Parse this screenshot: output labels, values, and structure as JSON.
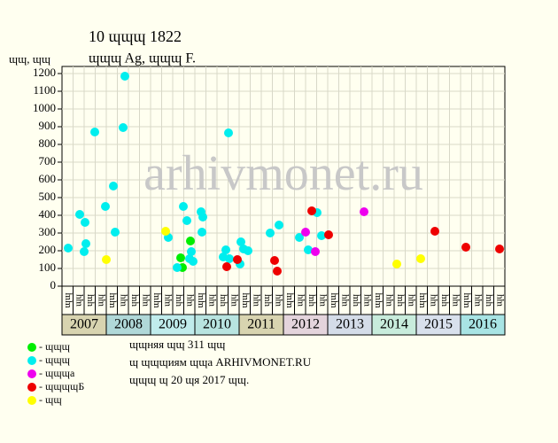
{
  "chart_data": {
    "type": "scatter",
    "title": "10 ɰɰɰ 1822",
    "subtitle": "ɰɰɰ Ag, ɰɰɰ F.",
    "y_label": "ɰɰ, ɰɰ",
    "ylim": [
      0,
      1240
    ],
    "yticks": [
      0,
      100,
      200,
      300,
      400,
      500,
      600,
      700,
      800,
      900,
      1000,
      1100,
      1200
    ],
    "xlim": [
      0,
      40
    ],
    "grid": true,
    "watermark": "arhivmonet.ru",
    "categories": [
      "ɰɰ",
      "ɰɥ",
      "ɥɰ",
      "ɰɥ",
      "ɰɰ",
      "ɰɥ",
      "ɥɰ",
      "ɰɥ",
      "ɰɰ",
      "ɰɥ",
      "ɥɰ",
      "ɰɥ",
      "ɰɰ",
      "ɰɥ",
      "ɥɰ",
      "ɰɥ",
      "ɰɰ",
      "ɰɥ",
      "ɥɰ",
      "ɰɥ",
      "ɰɰ",
      "ɰɥ",
      "ɥɰ",
      "ɰɥ",
      "ɰɰ",
      "ɰɥ",
      "ɥɰ",
      "ɰɥ",
      "ɰɰ",
      "ɰɥ",
      "ɥɰ",
      "ɰɥ",
      "ɰɰ",
      "ɰɥ",
      "ɥɰ",
      "ɰɥ",
      "ɰɰ",
      "ɰɥ",
      "ɥɰ",
      "ɰɥ"
    ],
    "years": [
      "2007",
      "2008",
      "2009",
      "2010",
      "2011",
      "2012",
      "2013",
      "2014",
      "2015",
      "2016"
    ],
    "year_colors": [
      "#d8d4b0",
      "#b0d8d8",
      "#c0ecec",
      "#b8e4e0",
      "#d8d4b0",
      "#e4d4dc",
      "#d4dce8",
      "#c8ecdc",
      "#d8e0ec",
      "#a8e4e4"
    ],
    "series": [
      {
        "name": "- ɰɰɰ",
        "color": "#00ee00",
        "x": [
          10.72,
          10.88,
          11.6
        ],
        "values": [
          160,
          105,
          255
        ]
      },
      {
        "name": "- ɰɰɰ",
        "color": "#00eeee",
        "x": [
          0.56,
          1.6,
          2.08,
          2.0,
          2.16,
          2.96,
          3.92,
          4.64,
          4.8,
          5.52,
          5.68,
          9.6,
          10.4,
          10.96,
          11.28,
          11.68,
          11.52,
          11.84,
          12.56,
          12.72,
          12.64,
          14.56,
          14.8,
          15.04,
          15.12,
          16.08,
          16.16,
          16.4,
          16.8,
          18.8,
          19.6,
          21.44,
          22.24,
          23.04,
          23.44
        ],
        "values": [
          215,
          405,
          360,
          195,
          240,
          870,
          450,
          565,
          305,
          895,
          1185,
          275,
          105,
          450,
          370,
          195,
          155,
          140,
          420,
          390,
          305,
          165,
          205,
          865,
          155,
          125,
          250,
          210,
          200,
          300,
          345,
          275,
          205,
          415,
          285
        ]
      },
      {
        "name": "- ɰɰɰа",
        "color": "#ee00ee",
        "x": [
          22.0,
          22.88,
          27.28
        ],
        "values": [
          305,
          195,
          420
        ]
      },
      {
        "name": "- ɰɰɰɰБ",
        "color": "#ee0000",
        "x": [
          14.88,
          15.84,
          19.2,
          19.44,
          22.56,
          24.08,
          33.68,
          36.48,
          39.52
        ],
        "values": [
          110,
          150,
          145,
          85,
          425,
          290,
          310,
          220,
          210
        ]
      },
      {
        "name": "- ɰɰ",
        "color": "#ffff00",
        "x": [
          4.0,
          9.36,
          30.24,
          32.4
        ],
        "values": [
          150,
          310,
          125,
          155
        ]
      }
    ],
    "notes": [
      "ɰɰняя ɰɰ 311 ɰɰ",
      "ɰ ɰɰɰиям ɰɰа ARHIVMONET.RU",
      "ɰɰɰ ɰ 20 ɰя 2017 ɰɰ."
    ]
  }
}
